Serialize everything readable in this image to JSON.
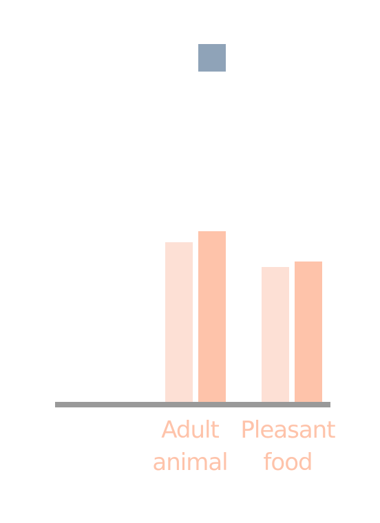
{
  "chart_data": {
    "type": "bar",
    "title": "",
    "xlabel": "",
    "ylabel": "",
    "categories": [
      "Adult animal",
      "Pleasant food"
    ],
    "category_label_lines": [
      [
        "Adult",
        "animal"
      ],
      [
        "Pleasant",
        "food"
      ]
    ],
    "series": [
      {
        "values": [
          58,
          49
        ],
        "color": "#fde0d5"
      },
      {
        "values": [
          62,
          51
        ],
        "color": "#fec3aa"
      }
    ],
    "legend_marker_color": "#8fa3b8",
    "category_label_color": "#fec3aa",
    "axis_color": "#999999",
    "ylim": [
      0,
      100
    ],
    "grid": false,
    "legend": "top-center"
  }
}
